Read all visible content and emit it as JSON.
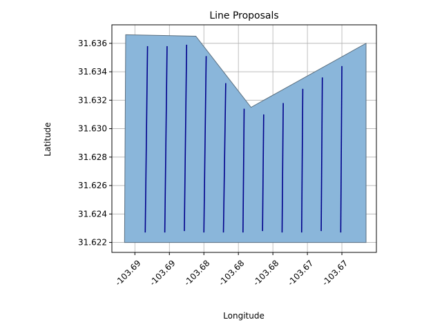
{
  "chart_data": {
    "type": "line",
    "title": "Line Proposals",
    "xlabel": "Longitude",
    "ylabel": "Latitude",
    "grid": true,
    "colors": {
      "polygon_fill": "#8ab6da",
      "polygon_edge": "#5a6e7e",
      "line": "#00008b",
      "grid": "#b0b0b0"
    },
    "x_ticks": [
      {
        "value": -103.6905,
        "label": "-103.69"
      },
      {
        "value": -103.6875,
        "label": "-103.69"
      },
      {
        "value": -103.6845,
        "label": "-103.68"
      },
      {
        "value": -103.6815,
        "label": "-103.68"
      },
      {
        "value": -103.6785,
        "label": "-103.68"
      },
      {
        "value": -103.6755,
        "label": "-103.67"
      },
      {
        "value": -103.6725,
        "label": "-103.67"
      }
    ],
    "y_ticks": [
      {
        "value": 31.622,
        "label": "31.622"
      },
      {
        "value": 31.624,
        "label": "31.624"
      },
      {
        "value": 31.626,
        "label": "31.626"
      },
      {
        "value": 31.628,
        "label": "31.628"
      },
      {
        "value": 31.63,
        "label": "31.630"
      },
      {
        "value": 31.632,
        "label": "31.632"
      },
      {
        "value": 31.634,
        "label": "31.634"
      },
      {
        "value": 31.636,
        "label": "31.636"
      }
    ],
    "xlim": [
      -103.6925,
      -103.6695
    ],
    "ylim": [
      31.6213,
      31.6373
    ],
    "polygon": [
      [
        -103.6914,
        31.622
      ],
      [
        -103.6913,
        31.6366
      ],
      [
        -103.6852,
        31.6365
      ],
      [
        -103.6804,
        31.6315
      ],
      [
        -103.6704,
        31.636
      ],
      [
        -103.6704,
        31.622
      ]
    ],
    "series": [
      {
        "values": [
          [
            -103.6896,
            31.6227
          ],
          [
            -103.6894,
            31.6358
          ]
        ]
      },
      {
        "values": [
          [
            -103.6879,
            31.6227
          ],
          [
            -103.6877,
            31.6358
          ]
        ]
      },
      {
        "values": [
          [
            -103.6862,
            31.6228
          ],
          [
            -103.686,
            31.6359
          ]
        ]
      },
      {
        "values": [
          [
            -103.6845,
            31.6227
          ],
          [
            -103.6843,
            31.6351
          ]
        ]
      },
      {
        "values": [
          [
            -103.6828,
            31.6227
          ],
          [
            -103.6826,
            31.6332
          ]
        ]
      },
      {
        "values": [
          [
            -103.6811,
            31.6227
          ],
          [
            -103.681,
            31.6314
          ]
        ]
      },
      {
        "values": [
          [
            -103.6794,
            31.6228
          ],
          [
            -103.6793,
            31.631
          ]
        ]
      },
      {
        "values": [
          [
            -103.6777,
            31.6227
          ],
          [
            -103.6776,
            31.6318
          ]
        ]
      },
      {
        "values": [
          [
            -103.676,
            31.6227
          ],
          [
            -103.6759,
            31.6328
          ]
        ]
      },
      {
        "values": [
          [
            -103.6743,
            31.6228
          ],
          [
            -103.6742,
            31.6336
          ]
        ]
      },
      {
        "values": [
          [
            -103.6726,
            31.6227
          ],
          [
            -103.6725,
            31.6344
          ]
        ]
      }
    ]
  }
}
